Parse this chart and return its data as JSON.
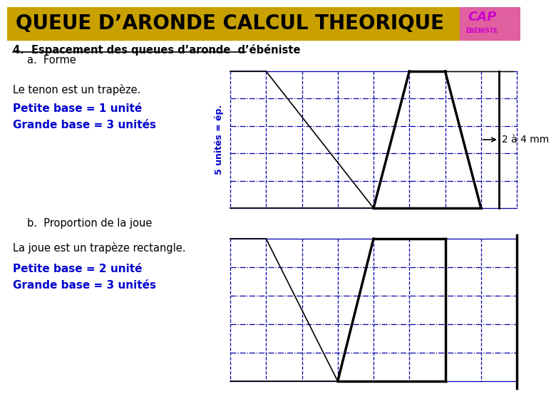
{
  "title": "QUEUE D’ARONDE CALCUL THEORIQUE",
  "title_bg": "#C8A000",
  "title_color": "black",
  "title_fontsize": 20,
  "bg_color": "white",
  "section_label": "4.  Espacement des queues d’aronde  d’ébéniste",
  "subsec_a": "a.  Forme",
  "subsec_b": "b.  Proportion de la joue",
  "text_tenon": "Le tenon est un trapèze.",
  "text_petite1": "Petite base = 1 unité",
  "text_grande1": "Grande base = 3 unités",
  "text_joue": "La joue est un trapèze rectangle.",
  "text_petite2": "Petite base = 2 unité",
  "text_grande2": "Grande base = 3 unités",
  "text_vertical": "5 unités = ép.",
  "text_2a4mm": "2 à 4 mm",
  "blue": "#0000CC",
  "line_blue": "#0000AA"
}
